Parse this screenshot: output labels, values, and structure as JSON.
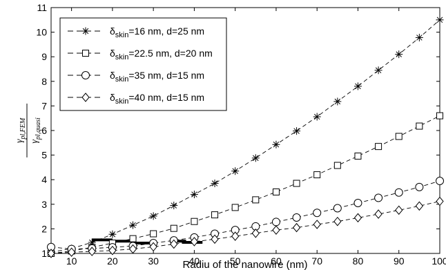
{
  "chart_data": {
    "type": "line",
    "xlabel": "Radiu of the nanowire (nm)",
    "ylabel": {
      "numerator": "γ_{pl,FEM}",
      "denominator": "γ_{pl,quasi}"
    },
    "xlim": [
      5,
      100
    ],
    "ylim": [
      1,
      11
    ],
    "xticks": [
      10,
      20,
      30,
      40,
      50,
      60,
      70,
      80,
      90,
      100
    ],
    "yticks": [
      1,
      2,
      3,
      4,
      5,
      6,
      7,
      8,
      9,
      10,
      11
    ],
    "x": [
      5,
      10,
      15,
      20,
      25,
      30,
      35,
      40,
      45,
      50,
      55,
      60,
      65,
      70,
      75,
      80,
      85,
      90,
      95,
      100
    ],
    "series": [
      {
        "name_prefix": "δ",
        "name_sub": "skin",
        "name_suffix": "=16 nm, d=25 nm",
        "marker": "asterisk",
        "values": [
          1.05,
          1.2,
          1.45,
          1.78,
          2.15,
          2.52,
          2.95,
          3.4,
          3.85,
          4.35,
          4.88,
          5.43,
          5.98,
          6.56,
          7.18,
          7.8,
          8.45,
          9.1,
          9.78,
          10.5
        ]
      },
      {
        "name_prefix": "δ",
        "name_sub": "skin",
        "name_suffix": "=22.5 nm, d=20 nm",
        "marker": "square",
        "values": [
          1.0,
          1.1,
          1.25,
          1.42,
          1.6,
          1.8,
          2.02,
          2.3,
          2.57,
          2.87,
          3.18,
          3.5,
          3.85,
          4.2,
          4.58,
          4.96,
          5.35,
          5.76,
          6.18,
          6.6
        ]
      },
      {
        "name_prefix": "δ",
        "name_sub": "skin",
        "name_suffix": "=35 nm, d=15 nm",
        "marker": "circle",
        "values": [
          1.26,
          1.18,
          1.2,
          1.25,
          1.3,
          1.42,
          1.53,
          1.65,
          1.8,
          1.95,
          2.1,
          2.28,
          2.46,
          2.65,
          2.84,
          3.05,
          3.26,
          3.48,
          3.7,
          3.95
        ]
      },
      {
        "name_prefix": "δ",
        "name_sub": "skin",
        "name_suffix": "=40 nm, d=15 nm",
        "marker": "diamond",
        "values": [
          1.0,
          1.05,
          1.08,
          1.12,
          1.18,
          1.27,
          1.38,
          1.48,
          1.58,
          1.7,
          1.82,
          1.95,
          2.05,
          2.18,
          2.3,
          2.45,
          2.6,
          2.76,
          2.93,
          3.12
        ]
      }
    ],
    "dashes": [
      {
        "x": [
          15,
          20
        ],
        "y": 1.55
      },
      {
        "x": [
          20,
          25
        ],
        "y": 1.5
      },
      {
        "x": [
          25,
          30
        ],
        "y": 1.42
      },
      {
        "x": [
          34,
          38
        ],
        "y": 1.5
      },
      {
        "x": [
          37,
          42
        ],
        "y": 1.45
      }
    ],
    "legend_position": "top-left",
    "grid": false
  }
}
